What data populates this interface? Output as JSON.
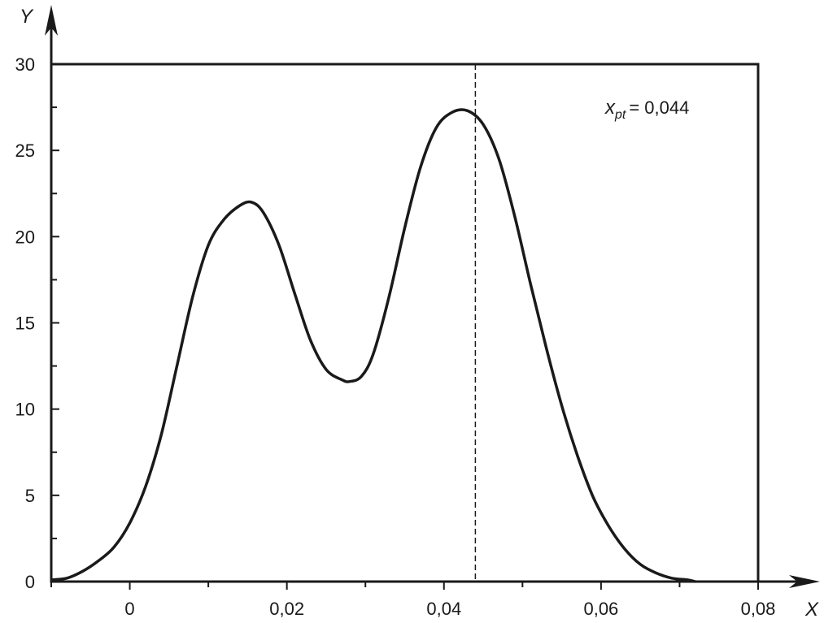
{
  "chart_data": {
    "type": "line",
    "title": "",
    "xlabel": "X",
    "ylabel": "Y",
    "xlim": [
      -0.01,
      0.08
    ],
    "ylim": [
      0,
      30
    ],
    "grid": false,
    "x_ticks": [
      "0",
      "0,02",
      "0,04",
      "0,06",
      "0,08"
    ],
    "x_tick_values": [
      0,
      0.02,
      0.04,
      0.06,
      0.08
    ],
    "y_ticks": [
      "0",
      "5",
      "10",
      "15",
      "20",
      "25",
      "30"
    ],
    "y_tick_values": [
      0,
      5,
      10,
      15,
      20,
      25,
      30
    ],
    "annotation": {
      "symbol": "x",
      "subscript": "pt",
      "text": "= 0,044",
      "x_value": 0.044
    },
    "series": [
      {
        "x": [
          -0.01,
          -0.008,
          -0.006,
          -0.004,
          -0.002,
          0,
          0.002,
          0.004,
          0.006,
          0.008,
          0.01,
          0.012,
          0.014,
          0.0155,
          0.017,
          0.019,
          0.021,
          0.023,
          0.025,
          0.027,
          0.028,
          0.0295,
          0.031,
          0.033,
          0.035,
          0.037,
          0.039,
          0.041,
          0.043,
          0.045,
          0.047,
          0.049,
          0.051,
          0.053,
          0.055,
          0.057,
          0.059,
          0.061,
          0.063,
          0.065,
          0.067,
          0.069,
          0.071,
          0.072
        ],
        "y": [
          0.1,
          0.2,
          0.6,
          1.2,
          2.0,
          3.4,
          5.5,
          8.5,
          12.5,
          16.5,
          19.5,
          21.0,
          21.8,
          22.0,
          21.4,
          19.5,
          16.7,
          14.0,
          12.3,
          11.7,
          11.6,
          11.9,
          13.2,
          16.5,
          20.5,
          24.0,
          26.3,
          27.2,
          27.3,
          26.5,
          24.5,
          21.2,
          17.3,
          13.6,
          10.2,
          7.3,
          4.9,
          3.2,
          1.9,
          1.0,
          0.5,
          0.2,
          0.1,
          0.0
        ]
      }
    ]
  }
}
